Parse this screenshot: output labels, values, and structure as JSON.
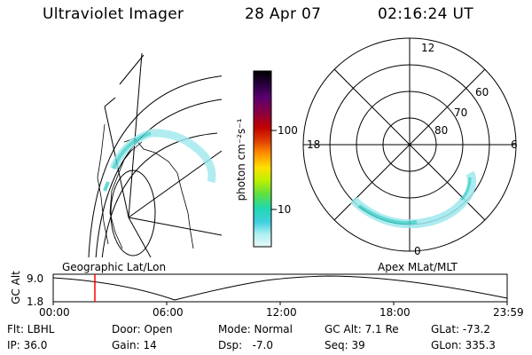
{
  "header": {
    "instrument": "Ultraviolet Imager",
    "date": "28 Apr 07",
    "time": "02:16:24 UT"
  },
  "geo_panel": {
    "label": "Geographic Lat/Lon"
  },
  "polar_panel": {
    "label": "Apex MLat/MLT",
    "mlt_labels": {
      "top": "12",
      "left": "18",
      "right": "6",
      "bottom": "0"
    },
    "lat_labels": [
      "60",
      "70",
      "80"
    ]
  },
  "colorbar": {
    "unit_label": "photon cm⁻²s⁻¹",
    "ticks": [
      "100",
      "10"
    ],
    "colors": [
      "#000000",
      "#2a0040",
      "#5a0070",
      "#8a0040",
      "#c00000",
      "#e04000",
      "#ff9000",
      "#ffe000",
      "#c0f000",
      "#60e040",
      "#20d8b0",
      "#40d0e0",
      "#b0f0f0",
      "#e8f8f8"
    ]
  },
  "timeline": {
    "y_label": "GC Alt",
    "y_ticks": [
      "9.0",
      "1.8"
    ],
    "x_ticks": [
      "00:00",
      "06:00",
      "12:00",
      "18:00",
      "23:59"
    ],
    "marker_color": "#ff0000"
  },
  "info": {
    "row1": {
      "filter": "Flt: LBHL",
      "door": "Door: Open",
      "mode": "Mode: Normal",
      "gcalt": "GC Alt: 7.1 Re",
      "glat": "GLat: -73.2"
    },
    "row2": {
      "ip": "IP: 36.0",
      "gain": "Gain: 14",
      "dsp": "Dsp:   -7.0",
      "seq": "Seq: 39",
      "glon": "GLon: 335.3"
    }
  }
}
